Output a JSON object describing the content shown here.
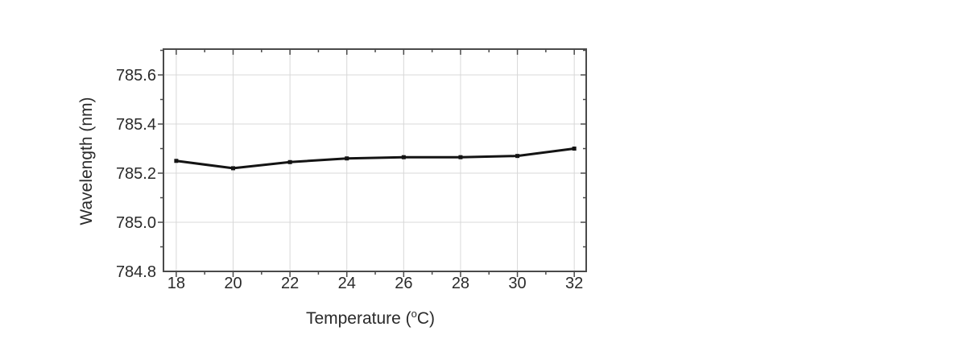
{
  "figure": {
    "background": "#ffffff"
  },
  "chart_data": {
    "type": "line",
    "title": "",
    "xlabel": "Temperature (°C)",
    "xlabel_parts": {
      "prefix": "Temperature (",
      "sup": "o",
      "suffix": "C)"
    },
    "ylabel": "Wavelength (nm)",
    "x": [
      18,
      20,
      22,
      24,
      26,
      28,
      30,
      32
    ],
    "series": [
      {
        "name": "wavelength",
        "values": [
          785.25,
          785.22,
          785.245,
          785.26,
          785.265,
          785.265,
          785.27,
          785.3
        ]
      }
    ],
    "xlim": [
      17.55,
      32.42
    ],
    "ylim": [
      784.8,
      785.705
    ],
    "x_major_ticks": [
      18,
      20,
      22,
      24,
      26,
      28,
      30,
      32
    ],
    "x_minor_ticks": [
      19,
      21,
      23,
      25,
      27,
      29,
      31
    ],
    "y_major_ticks": [
      784.8,
      785.0,
      785.2,
      785.4,
      785.6
    ],
    "y_minor_ticks": [
      784.9,
      785.1,
      785.3,
      785.5,
      785.7
    ],
    "y_tick_decimals": 1,
    "grid": true,
    "legend": null,
    "colors": {
      "line": "#141414",
      "marker": "#141414",
      "frame": "#4a4a4a",
      "tick": "#4a4a4a",
      "grid": "#d8d8d8",
      "text": "#2a2a2a",
      "background": "#ffffff"
    }
  }
}
